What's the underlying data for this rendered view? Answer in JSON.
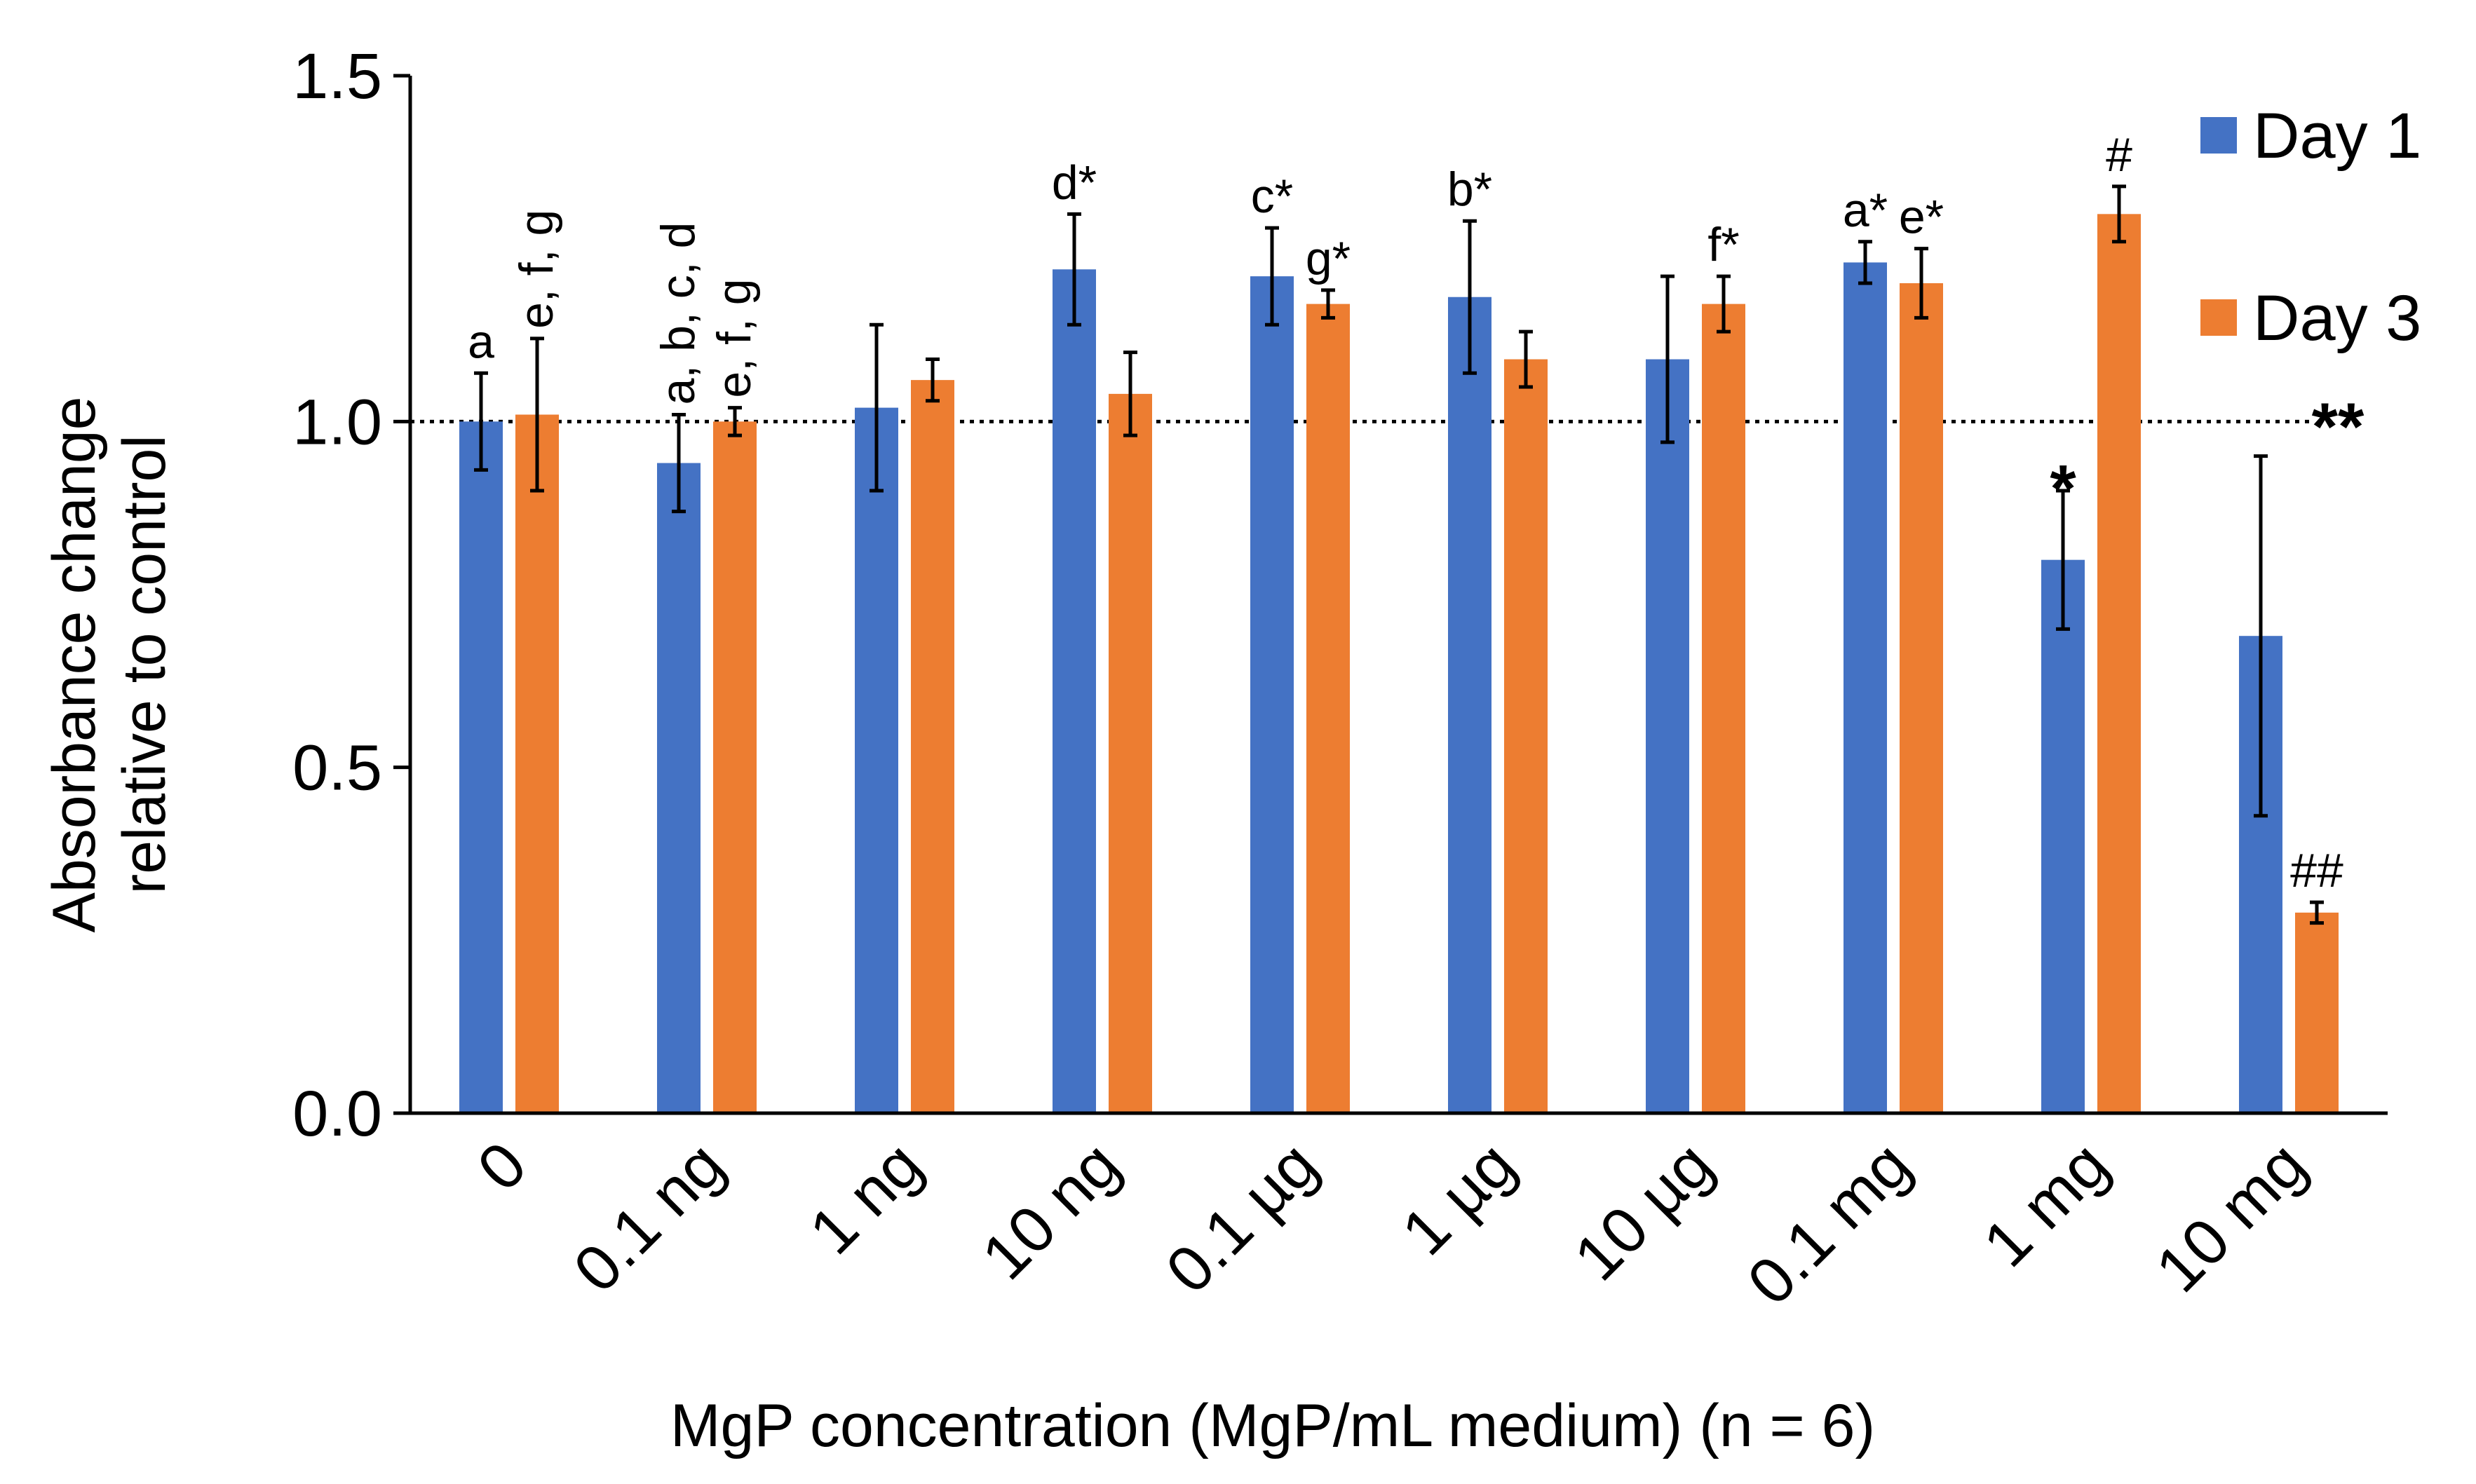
{
  "chart_data": {
    "type": "bar",
    "title": "",
    "xlabel": "MgP concentration (MgP/mL medium) (n = 6)",
    "ylabel_lines": [
      "Absorbance change",
      "relative to control"
    ],
    "ylim": [
      0,
      1.5
    ],
    "yticks": [
      0.0,
      0.5,
      1.0,
      1.5
    ],
    "ytick_labels": [
      "0.0",
      "0.5",
      "1.0",
      "1.5"
    ],
    "reference_line": 1.0,
    "categories": [
      "0",
      "0.1 ng",
      "1 ng",
      "10 ng",
      "0.1 µg",
      "1 µg",
      "10 µg",
      "0.1 mg",
      "1 mg",
      "10 mg"
    ],
    "series": [
      {
        "name": "Day 1",
        "color": "#4472C4",
        "values": [
          1.0,
          0.94,
          1.02,
          1.22,
          1.21,
          1.18,
          1.09,
          1.23,
          0.8,
          0.69
        ],
        "errors": [
          0.07,
          0.07,
          0.12,
          0.08,
          0.07,
          0.11,
          0.12,
          0.03,
          0.1,
          0.26
        ],
        "annotations": [
          "a",
          "a, b, c, d",
          "",
          "d*",
          "c*",
          "b*",
          "",
          "a*",
          "*",
          ""
        ]
      },
      {
        "name": "Day 3",
        "color": "#ED7D31",
        "values": [
          1.01,
          1.0,
          1.06,
          1.04,
          1.17,
          1.09,
          1.17,
          1.2,
          1.3,
          0.29
        ],
        "errors": [
          0.11,
          0.02,
          0.03,
          0.06,
          0.02,
          0.04,
          0.04,
          0.05,
          0.04,
          0.015
        ],
        "annotations": [
          "e, f, g",
          "e, f, g",
          "",
          "",
          "g*",
          "",
          "f*",
          "e*",
          "#",
          "##"
        ]
      }
    ],
    "extra_annotations": [
      {
        "text": "**",
        "category": "10 mg"
      }
    ],
    "legend": {
      "position": "top-right",
      "entries": [
        "Day 1",
        "Day 3"
      ]
    }
  }
}
